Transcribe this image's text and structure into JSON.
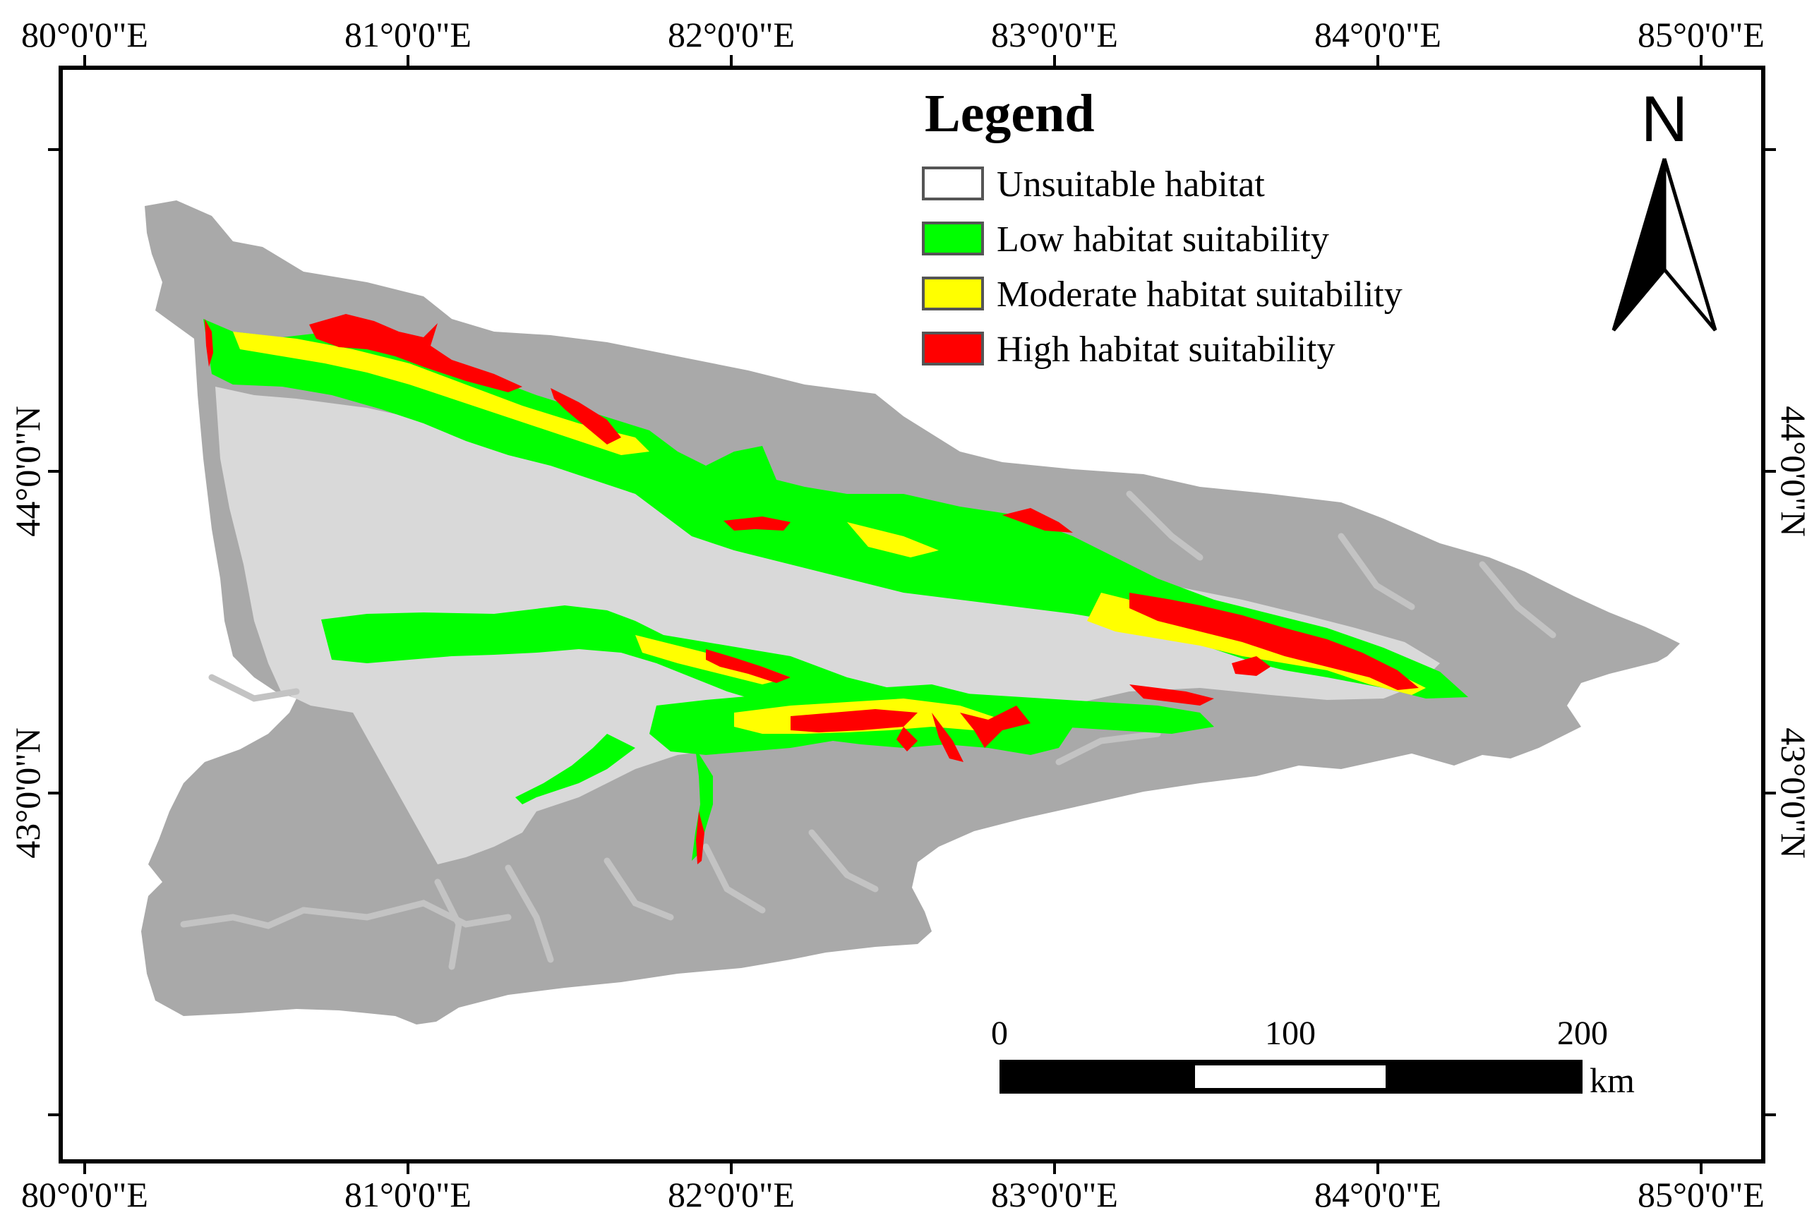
{
  "map": {
    "top_longitudes": [
      "80°0'0\"E",
      "81°0'0\"E",
      "82°0'0\"E",
      "83°0'0\"E",
      "84°0'0\"E",
      "85°0'0\"E"
    ],
    "bottom_longitudes": [
      "80°0'0\"E",
      "81°0'0\"E",
      "82°0'0\"E",
      "83°0'0\"E",
      "84°0'0\"E",
      "85°0'0\"E"
    ],
    "left_latitudes": [
      "44°0'0\"N",
      "43°0'0\"N"
    ],
    "right_latitudes": [
      "44°0'0\"N",
      "43°0'0\"N"
    ]
  },
  "legend": {
    "title": "Legend",
    "items": [
      {
        "label": "Unsuitable habitat",
        "color": "#ffffff"
      },
      {
        "label": "Low habitat suitability",
        "color": "#00ff00"
      },
      {
        "label": "Moderate habitat suitability",
        "color": "#ffff00"
      },
      {
        "label": "High habitat suitability",
        "color": "#ff0000"
      }
    ]
  },
  "north_arrow": {
    "label": "N"
  },
  "scale_bar": {
    "ticks": [
      "0",
      "100",
      "200"
    ],
    "unit": "km"
  },
  "colors": {
    "mountain": "#a9a9a9",
    "basin": "#d9d9d9",
    "valley": "#c3c3c3",
    "low": "#00ff00",
    "moderate": "#ffff00",
    "high": "#ff0000"
  }
}
